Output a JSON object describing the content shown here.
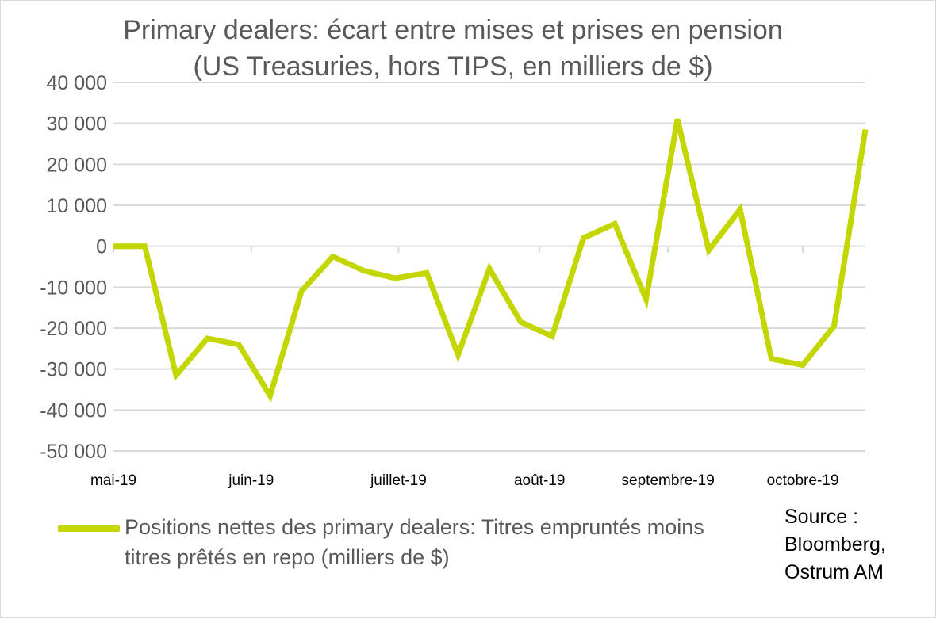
{
  "chart_data": {
    "type": "line",
    "title": "Primary dealers: écart entre mises et prises en pension",
    "subtitle": "(US Treasuries, hors TIPS, en milliers de $)",
    "ylim": [
      -50000,
      40000
    ],
    "ytick_values": [
      40000,
      30000,
      20000,
      10000,
      0,
      -10000,
      -20000,
      -30000,
      -40000,
      -50000
    ],
    "ytick_labels": [
      "40 000",
      "30 000",
      "20 000",
      "10 000",
      "0",
      "-10 000",
      "-20 000",
      "-30 000",
      "-40 000",
      "-50 000"
    ],
    "xtick_labels": [
      "mai-19",
      "juin-19",
      "juillet-19",
      "août-19",
      "septembre-19",
      "octobre-19"
    ],
    "xtick_index": [
      0,
      4.4,
      9.1,
      13.6,
      17.7,
      22.0
    ],
    "grid": true,
    "legend_position": "bottom",
    "series": [
      {
        "name": "Positions nettes des primary dealers: Titres empruntés moins titres prêtés en repo (milliers de $)",
        "color": "#c4d600",
        "values": [
          0,
          0,
          -31500,
          -22500,
          -24000,
          -36500,
          -11000,
          -2500,
          -6000,
          -7800,
          -6500,
          -26500,
          -5500,
          -18500,
          -22000,
          2000,
          5500,
          -13000,
          31000,
          -1000,
          9000,
          -27500,
          -29000,
          -19500,
          28500
        ]
      }
    ]
  },
  "source_label": "Source : Bloomberg, Ostrum AM"
}
